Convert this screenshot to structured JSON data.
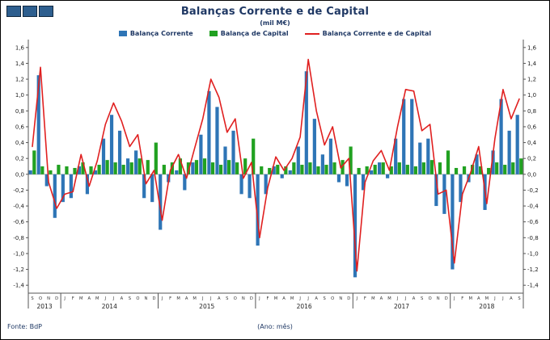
{
  "logo": {
    "squares": 3
  },
  "chart_data": {
    "type": "bar",
    "title": "Balanças Corrente e de Capital",
    "subtitle": "(mil M€)",
    "xlabel": "(Ano: mês)",
    "source": "Fonte: BdP",
    "legend_position": "top",
    "grid": "zero-line-only",
    "ylim": [
      -1.5,
      1.7
    ],
    "yticks": {
      "min": -1.4,
      "max": 1.6,
      "step": 0.2,
      "decimal_separator": ","
    },
    "years": [
      {
        "label": "2013",
        "count": 4
      },
      {
        "label": "2014",
        "count": 12
      },
      {
        "label": "2015",
        "count": 12
      },
      {
        "label": "2016",
        "count": 12
      },
      {
        "label": "2017",
        "count": 12
      },
      {
        "label": "2018",
        "count": 9
      }
    ],
    "months": [
      "S",
      "O",
      "N",
      "D",
      "J",
      "F",
      "M",
      "A",
      "M",
      "J",
      "J",
      "A",
      "S",
      "O",
      "N",
      "D",
      "J",
      "F",
      "M",
      "A",
      "M",
      "J",
      "J",
      "A",
      "S",
      "O",
      "N",
      "D",
      "J",
      "F",
      "M",
      "A",
      "M",
      "J",
      "J",
      "A",
      "S",
      "O",
      "N",
      "D",
      "J",
      "F",
      "M",
      "A",
      "M",
      "J",
      "J",
      "A",
      "S",
      "O",
      "N",
      "D",
      "J",
      "F",
      "M",
      "A",
      "M",
      "J",
      "J",
      "A",
      "S"
    ],
    "series": [
      {
        "name": "Balança Corrente",
        "kind": "bar",
        "color": "#2e75b6",
        "values": [
          0.05,
          1.25,
          -0.15,
          -0.55,
          -0.35,
          -0.3,
          0.1,
          -0.25,
          0.05,
          0.45,
          0.75,
          0.55,
          0.2,
          0.3,
          -0.3,
          -0.35,
          -0.7,
          -0.1,
          0.05,
          -0.2,
          0.15,
          0.5,
          1.05,
          0.85,
          0.35,
          0.55,
          -0.25,
          -0.3,
          -0.9,
          -0.25,
          0.1,
          -0.05,
          0.05,
          0.35,
          1.3,
          0.7,
          0.25,
          0.45,
          -0.1,
          -0.15,
          -1.3,
          -0.2,
          0.05,
          0.15,
          -0.05,
          0.45,
          0.95,
          0.95,
          0.4,
          0.45,
          -0.4,
          -0.5,
          -1.2,
          -0.35,
          -0.1,
          0.25,
          -0.45,
          0.3,
          0.95,
          0.55,
          0.75
        ]
      },
      {
        "name": "Balança de Capital",
        "kind": "bar",
        "color": "#21a121",
        "values": [
          0.3,
          0.1,
          0.05,
          0.12,
          0.1,
          0.08,
          0.15,
          0.1,
          0.12,
          0.18,
          0.15,
          0.12,
          0.15,
          0.2,
          0.18,
          0.4,
          0.12,
          0.15,
          0.2,
          0.15,
          0.18,
          0.2,
          0.15,
          0.12,
          0.18,
          0.15,
          0.2,
          0.45,
          0.1,
          0.08,
          0.12,
          0.1,
          0.15,
          0.12,
          0.15,
          0.1,
          0.12,
          0.15,
          0.18,
          0.35,
          0.08,
          0.1,
          0.12,
          0.15,
          0.1,
          0.15,
          0.12,
          0.1,
          0.15,
          0.18,
          0.15,
          0.3,
          0.08,
          0.1,
          0.12,
          0.1,
          0.08,
          0.15,
          0.12,
          0.15,
          0.2
        ]
      },
      {
        "name": "Balança Corrente e de Capital",
        "kind": "line",
        "color": "#e02020",
        "values": [
          0.35,
          1.35,
          -0.1,
          -0.43,
          -0.25,
          -0.22,
          0.25,
          -0.15,
          0.17,
          0.63,
          0.9,
          0.67,
          0.35,
          0.5,
          -0.12,
          0.05,
          -0.58,
          0.05,
          0.25,
          -0.05,
          0.33,
          0.7,
          1.2,
          0.97,
          0.53,
          0.7,
          -0.05,
          0.15,
          -0.8,
          -0.17,
          0.22,
          0.05,
          0.2,
          0.47,
          1.45,
          0.8,
          0.37,
          0.6,
          0.08,
          0.2,
          -1.22,
          -0.1,
          0.17,
          0.3,
          0.05,
          0.6,
          1.07,
          1.05,
          0.55,
          0.63,
          -0.25,
          -0.2,
          -1.12,
          -0.25,
          0.02,
          0.35,
          -0.37,
          0.45,
          1.07,
          0.7,
          0.95
        ]
      }
    ]
  }
}
